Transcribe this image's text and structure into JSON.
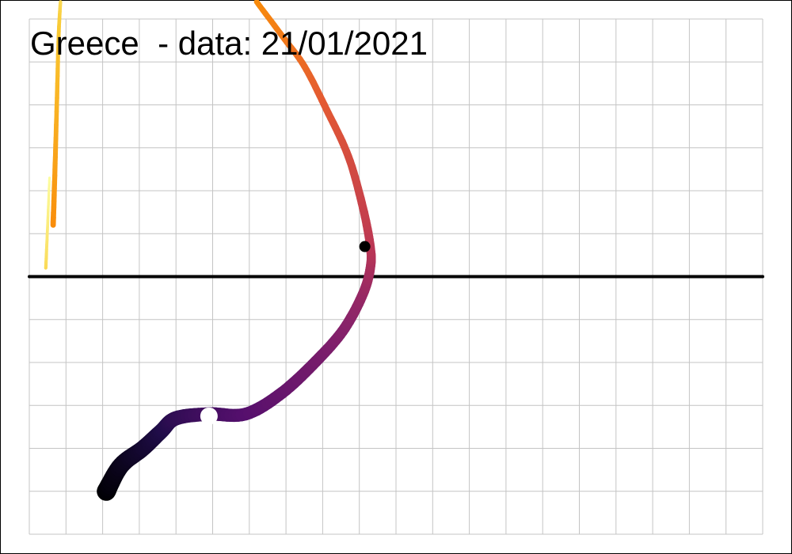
{
  "chart_data": {
    "type": "line",
    "title": "Greece  - data: 21/01/2021",
    "xlabel": "",
    "ylabel": "",
    "xlim": [
      0,
      20
    ],
    "ylim": [
      -6,
      6
    ],
    "grid": true,
    "legend": "none",
    "reference_line": {
      "y": 0,
      "color": "#000000"
    },
    "colormap": "inferno",
    "series": [
      {
        "x": [
          2.1,
          2.5,
          3.1,
          3.6,
          4.0,
          4.9,
          5.9,
          6.9,
          7.9,
          8.6,
          9.1,
          9.3,
          9.3,
          9.1,
          8.7,
          8.1,
          7.5,
          6.9,
          6.2
        ],
        "y": [
          -5.0,
          -4.4,
          -4.0,
          -3.6,
          -3.3,
          -3.2,
          -3.2,
          -2.7,
          -1.9,
          -1.2,
          -0.4,
          0.2,
          0.7,
          1.6,
          2.8,
          3.9,
          4.9,
          5.6,
          6.4
        ]
      },
      {
        "x": [
          0.65,
          0.7,
          0.75,
          0.8,
          0.85
        ],
        "y": [
          1.2,
          2.5,
          4.0,
          5.6,
          6.4
        ]
      },
      {
        "x": [
          0.45,
          0.5,
          0.55
        ],
        "y": [
          0.2,
          1.2,
          2.3
        ]
      }
    ],
    "markers": [
      {
        "x": 4.9,
        "y": -3.25,
        "color": "#ffffff"
      },
      {
        "x": 9.15,
        "y": 0.7,
        "color": "#000000"
      }
    ]
  }
}
